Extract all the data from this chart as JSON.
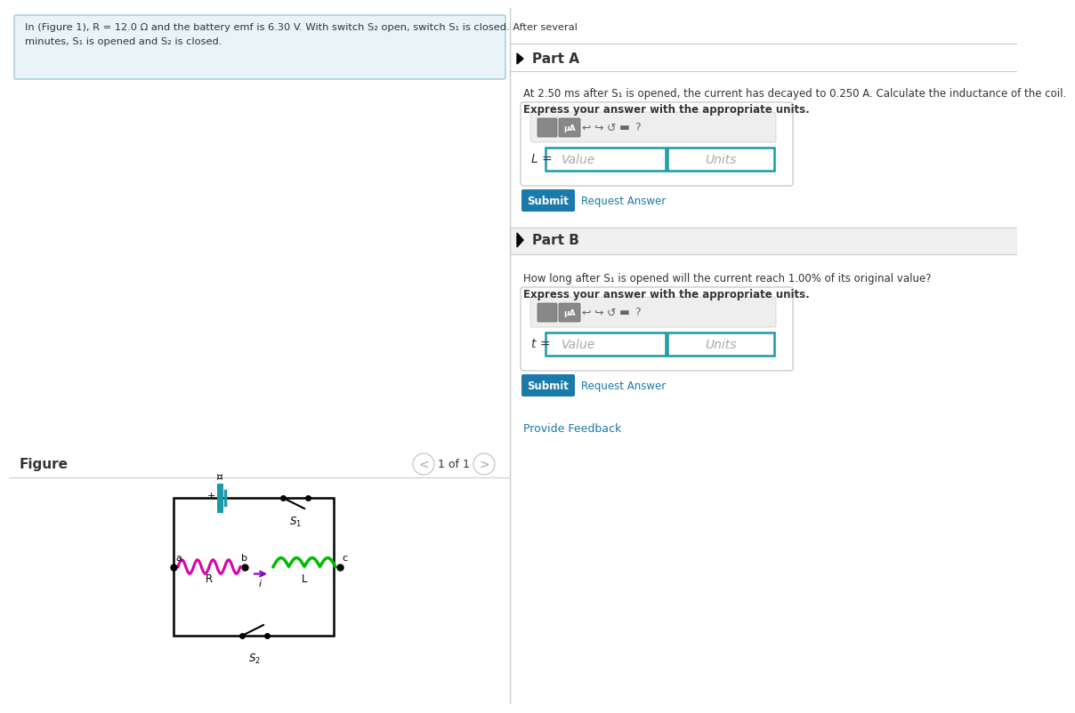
{
  "bg_color": "#ffffff",
  "left_panel_bg": "#e8f4f8",
  "left_panel_border": "#a0c8d8",
  "left_text_line1": "In (Figure 1), R = 12.0 Ω and the battery emf is 6.30 V. With switch S₂ open, switch S₁ is closed. After several",
  "left_text_line2": "minutes, S₁ is opened and S₂ is closed.",
  "part_a_header": "Part A",
  "part_a_text1": "At 2.50 ms after S₁ is opened, the current has decayed to 0.250 A. Calculate the inductance of the coil.",
  "part_a_text2": "Express your answer with the appropriate units.",
  "part_a_label": "L =",
  "part_b_header": "Part B",
  "part_b_text1": "How long after S₁ is opened will the current reach 1.00% of its original value?",
  "part_b_text2": "Express your answer with the appropriate units.",
  "part_b_label": "t =",
  "value_placeholder": "Value",
  "units_placeholder": "Units",
  "submit_text": "Submit",
  "request_answer_text": "Request Answer",
  "provide_feedback_text": "Provide Feedback",
  "figure_text": "Figure",
  "nav_text": "1 of 1",
  "submit_bg": "#1a7aaa",
  "submit_fg": "#ffffff",
  "link_color": "#1a7aaa",
  "part_header_bg": "#f0f0f0",
  "input_border": "#1a9aaa",
  "panel_border": "#cccccc",
  "divider_color": "#cccccc",
  "text_color": "#333333",
  "placeholder_color": "#aaaaaa",
  "icon_bg": "#888888",
  "toolbar_bg": "#eeeeee"
}
